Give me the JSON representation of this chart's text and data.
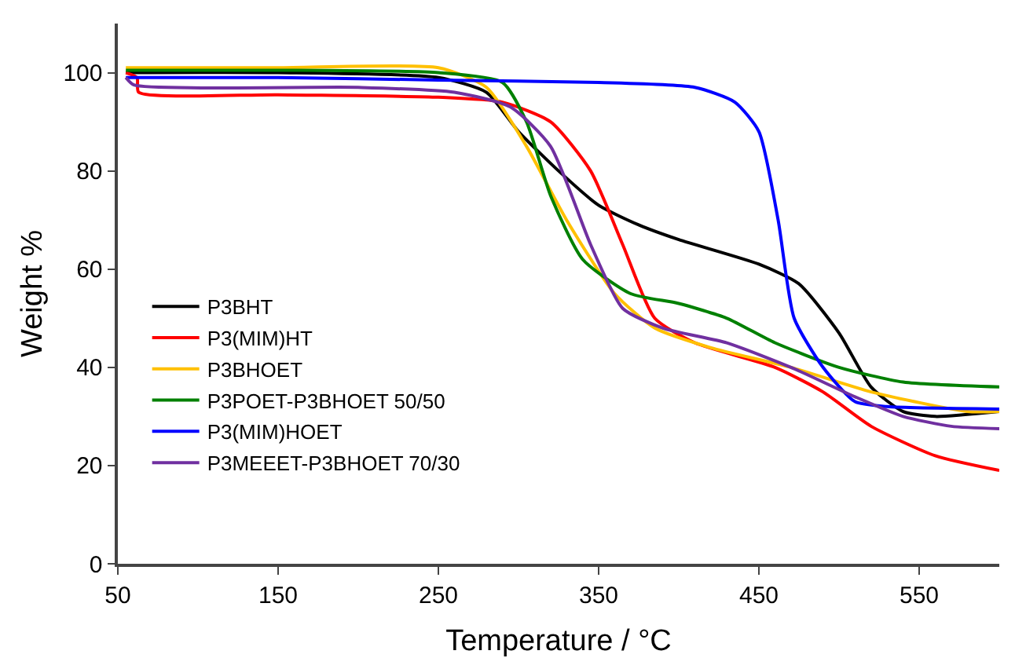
{
  "chart_data": {
    "type": "line",
    "xlabel": "Temperature / °C",
    "ylabel": "Weight %",
    "xlim": [
      50,
      600
    ],
    "ylim": [
      0,
      110
    ],
    "xticks": [
      50,
      150,
      250,
      350,
      450,
      550
    ],
    "yticks": [
      0,
      20,
      40,
      60,
      80,
      100
    ],
    "grid": false,
    "legend": "left",
    "marker": "none",
    "line_style": "solid",
    "series": [
      {
        "name": "P3BHT",
        "color": "#000000",
        "x": [
          55,
          150,
          250,
          280,
          300,
          325,
          350,
          375,
          400,
          450,
          475,
          500,
          520,
          540,
          560,
          600
        ],
        "values": [
          100,
          100,
          99,
          96,
          88,
          80,
          73,
          69,
          66,
          61,
          57,
          47,
          36,
          31,
          30,
          31
        ]
      },
      {
        "name": "P3(MIM)HT",
        "color": "#ff0000",
        "x": [
          55,
          62,
          63,
          150,
          250,
          290,
          320,
          345,
          365,
          385,
          410,
          460,
          490,
          520,
          560,
          600
        ],
        "values": [
          100,
          99,
          96,
          95.5,
          95,
          94,
          90,
          80,
          65,
          50,
          45,
          40,
          35,
          28,
          22,
          19
        ]
      },
      {
        "name": "P3BHOET",
        "color": "#ffc000",
        "x": [
          55,
          150,
          250,
          280,
          305,
          330,
          360,
          385,
          420,
          470,
          520,
          580,
          600
        ],
        "values": [
          101,
          101,
          101,
          97,
          85,
          70,
          55,
          48,
          44,
          40,
          35,
          31,
          31
        ]
      },
      {
        "name": "P3POET-P3BHOET 50/50",
        "color": "#008000",
        "x": [
          55,
          150,
          250,
          290,
          305,
          320,
          340,
          370,
          400,
          430,
          460,
          500,
          540,
          600
        ],
        "values": [
          100.5,
          100.5,
          100,
          98,
          90,
          75,
          62,
          55,
          53,
          50,
          45,
          40,
          37,
          36
        ]
      },
      {
        "name": "P3(MIM)HOET",
        "color": "#0000ff",
        "x": [
          55,
          150,
          250,
          350,
          410,
          435,
          450,
          462,
          472,
          490,
          510,
          530,
          600
        ],
        "values": [
          99,
          99,
          98.5,
          98,
          97,
          94,
          88,
          70,
          50,
          40,
          33,
          32,
          31.5
        ]
      },
      {
        "name": "P3MEEET-P3BHOET 70/30",
        "color": "#7030a0",
        "x": [
          55,
          60,
          200,
          260,
          295,
          320,
          345,
          365,
          390,
          430,
          470,
          510,
          540,
          570,
          600
        ],
        "values": [
          99,
          97.5,
          97,
          96,
          93,
          85,
          65,
          52,
          48,
          45,
          40,
          34,
          30,
          28,
          27.5
        ]
      }
    ]
  }
}
